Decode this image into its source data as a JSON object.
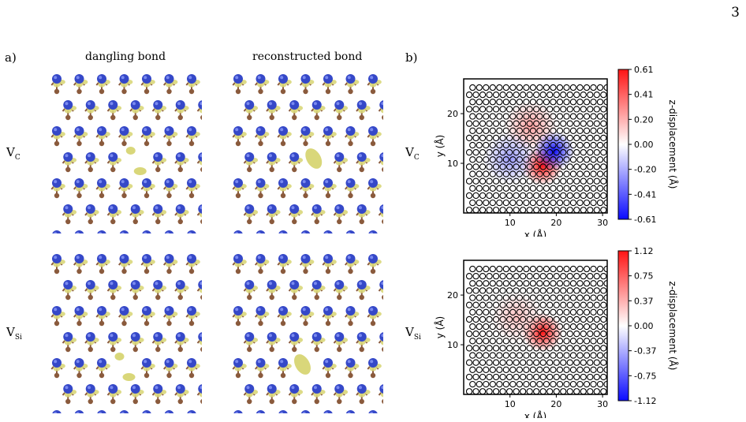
{
  "page_number": "3",
  "panel_a": {
    "letter": "a)",
    "col_titles": [
      "dangling bond",
      "reconstructed bond"
    ],
    "rows": [
      {
        "label_main": "V",
        "label_sub": "C"
      },
      {
        "label_main": "V",
        "label_sub": "Si"
      }
    ]
  },
  "panel_b": {
    "letter": "b)",
    "row_labels": [
      {
        "label_main": "V",
        "label_sub": "C"
      },
      {
        "label_main": "V",
        "label_sub": "Si"
      }
    ]
  },
  "colors": {
    "nitrogen_like_atom": "#3548c8",
    "carbon_like_atom": "#8a5a3c",
    "isosurface": "#d9d77a",
    "positive": "#e8262b",
    "negative": "#2228d8"
  },
  "chart_data": [
    {
      "type": "heatmap",
      "xlabel": "x (Å)",
      "ylabel": "y (Å)",
      "xticks": [
        10,
        20,
        30
      ],
      "yticks": [
        10,
        20
      ],
      "xlim": [
        0,
        31
      ],
      "ylim": [
        0,
        27
      ],
      "colorbar_label": "z-displacement (Å)",
      "colorbar_ticks": [
        "0.61",
        "0.41",
        "0.20",
        "0.00",
        "-0.20",
        "-0.41",
        "-0.61"
      ],
      "vrange": [
        -0.61,
        0.61
      ],
      "features": [
        {
          "x": 17,
          "y": 9.5,
          "value": 0.61
        },
        {
          "x": 14.5,
          "y": 17.5,
          "value": 0.25
        },
        {
          "x": 19.5,
          "y": 12.5,
          "value": -0.61
        },
        {
          "x": 10,
          "y": 11,
          "value": -0.25
        }
      ]
    },
    {
      "type": "heatmap",
      "xlabel": "x (Å)",
      "ylabel": "y (Å)",
      "xticks": [
        10,
        20,
        30
      ],
      "yticks": [
        10,
        20
      ],
      "xlim": [
        0,
        31
      ],
      "ylim": [
        0,
        27
      ],
      "colorbar_label": "z-displacement (Å)",
      "colorbar_ticks": [
        "1.12",
        "0.75",
        "0.37",
        "0.00",
        "-0.37",
        "-0.75",
        "-1.12"
      ],
      "vrange": [
        -1.12,
        1.12
      ],
      "features": [
        {
          "x": 17,
          "y": 12.5,
          "value": 1.12
        },
        {
          "x": 11.5,
          "y": 15.5,
          "value": 0.3
        }
      ]
    }
  ]
}
